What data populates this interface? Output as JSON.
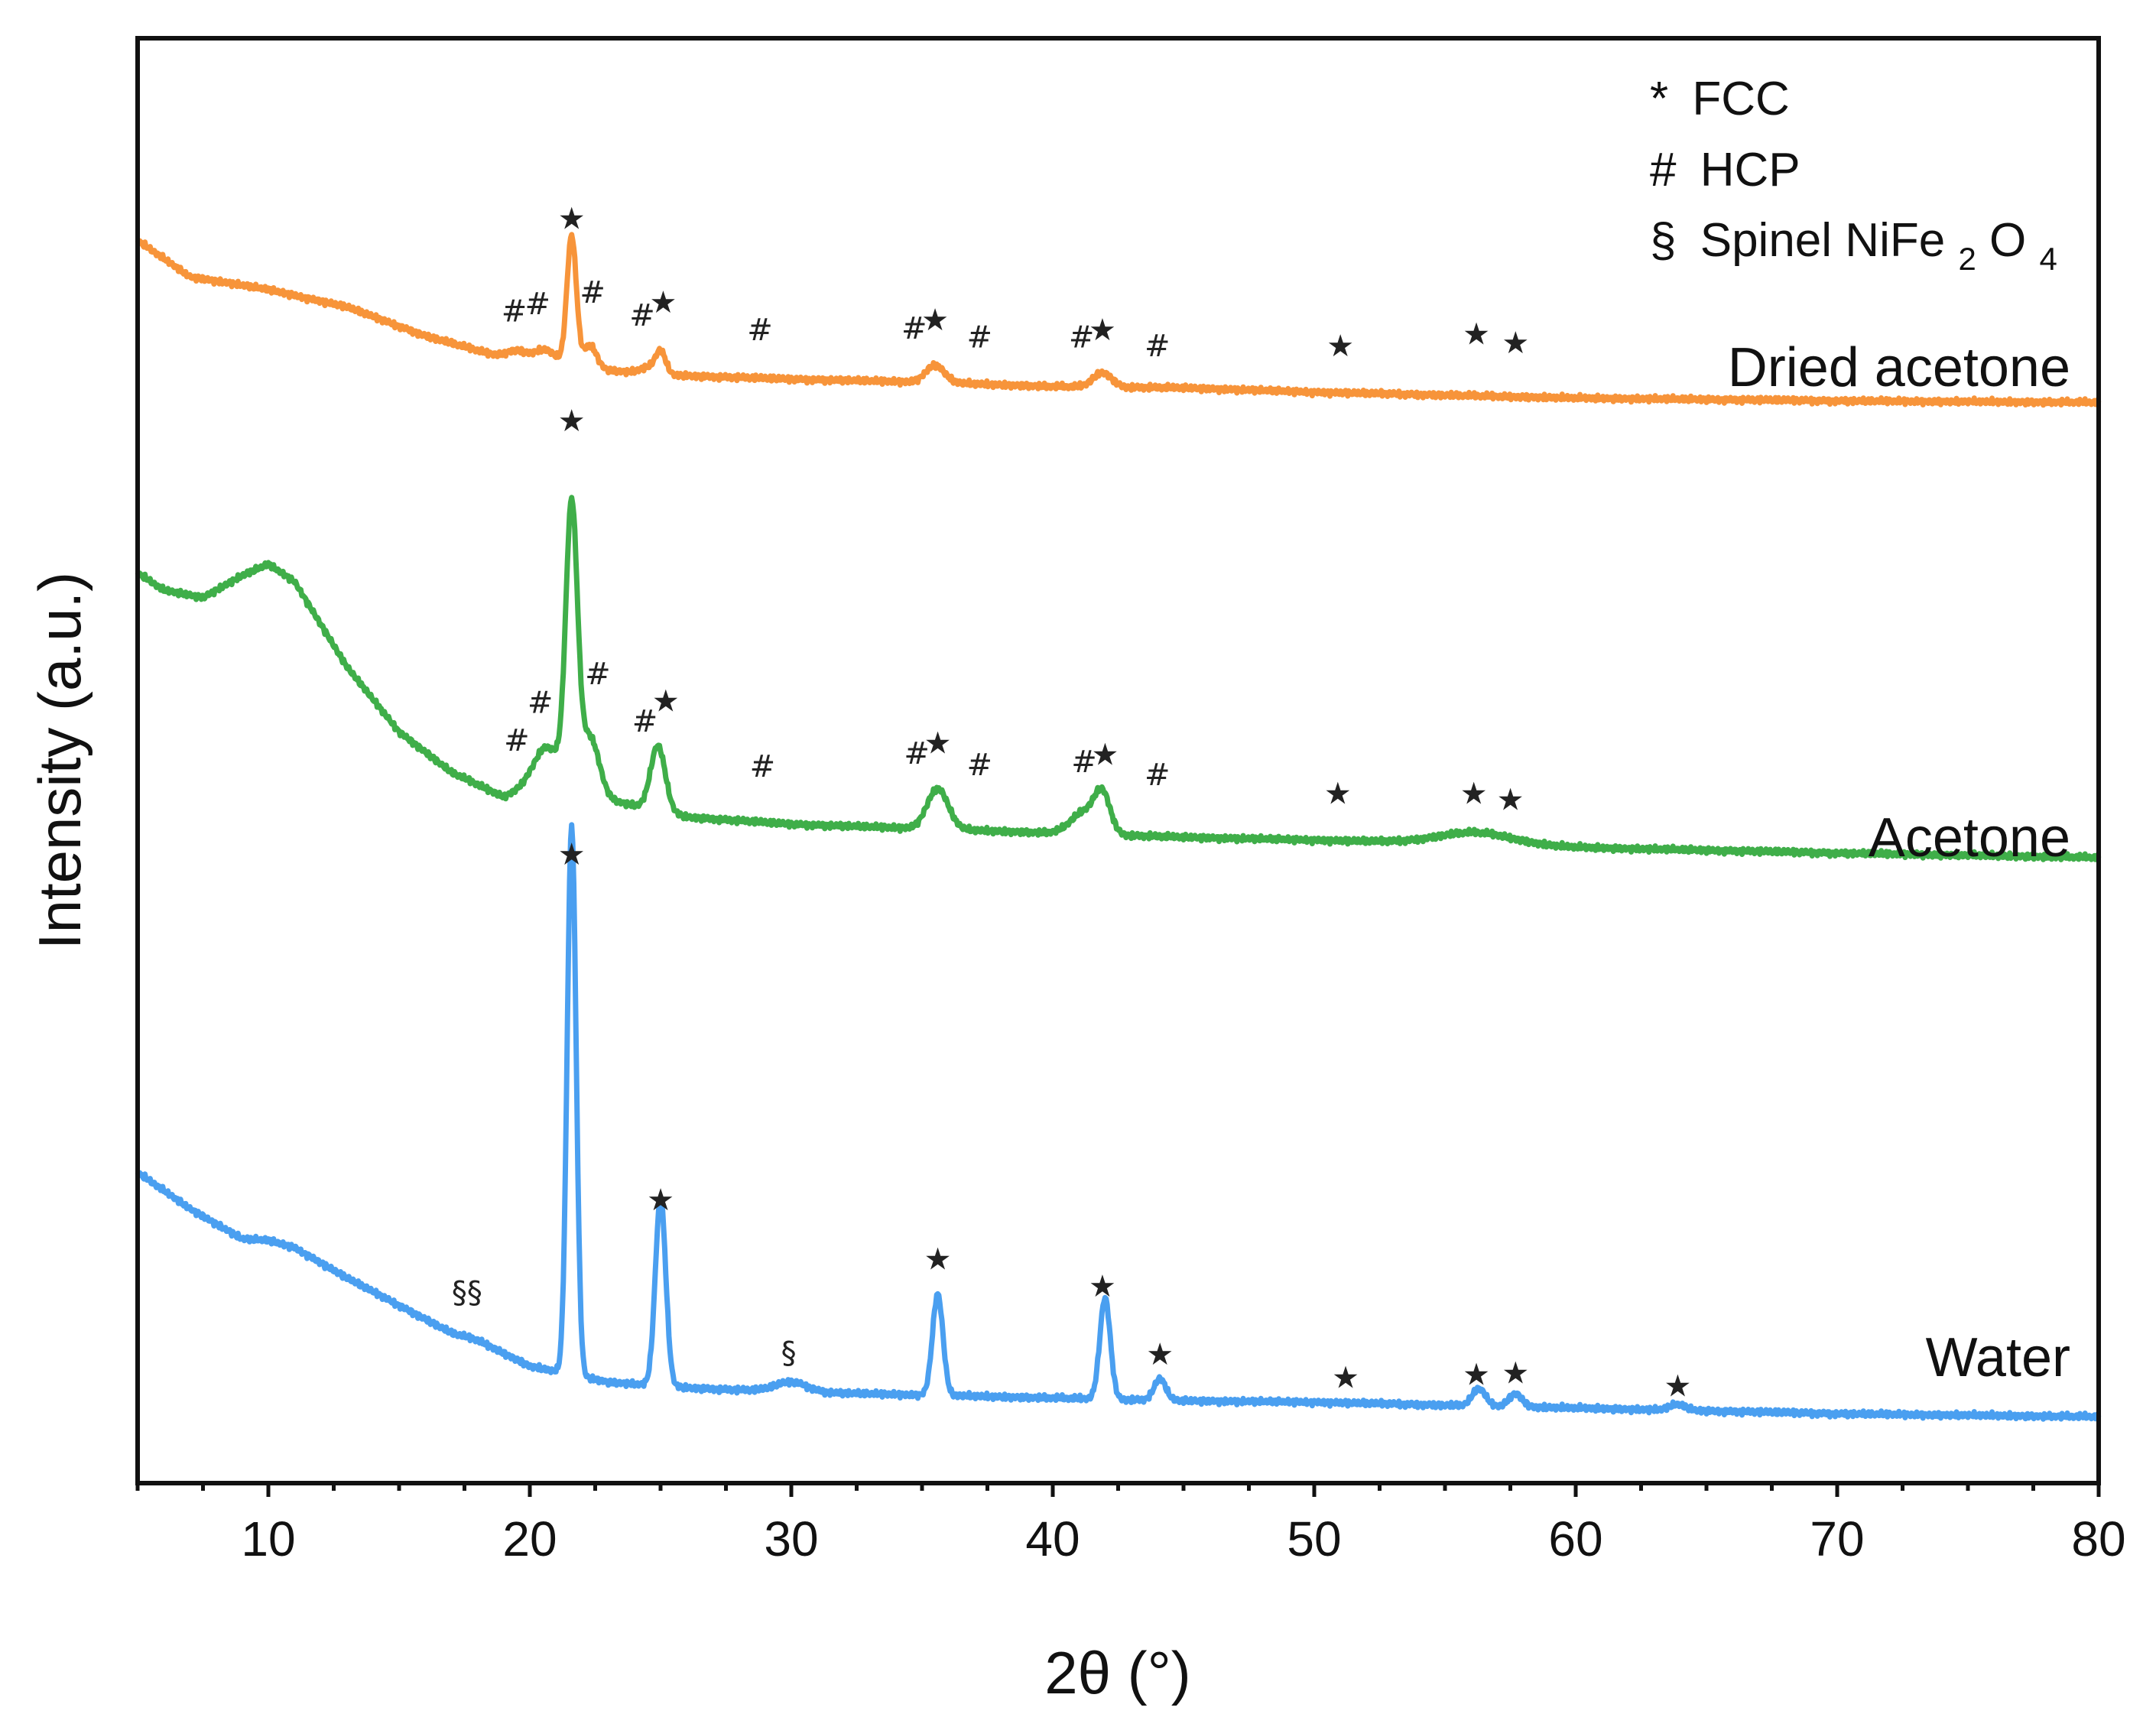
{
  "chart_data": {
    "type": "line",
    "title": "",
    "xlabel": "2θ (°)",
    "ylabel": "Intensity (a.u.)",
    "xlim": [
      5,
      80
    ],
    "ylim": [
      0,
      100
    ],
    "yticks_shown": false,
    "x_ticks": [
      10,
      20,
      30,
      40,
      50,
      60,
      70,
      80
    ],
    "x_tick_labels": [
      "10",
      "20",
      "30",
      "40",
      "50",
      "60",
      "70",
      "80"
    ],
    "legend": [
      {
        "symbol": "*",
        "label": "FCC"
      },
      {
        "symbol": "#",
        "label": "HCP"
      },
      {
        "symbol": "§",
        "label": "Spinel NiFe",
        "sub1": "2",
        "mid": "O",
        "sub2": "4"
      }
    ],
    "series": [
      {
        "name": "Dried acetone",
        "color": "#f7943a",
        "baseline": [
          [
            5,
            86
          ],
          [
            7,
            83.5
          ],
          [
            10,
            82.6
          ],
          [
            13,
            81.4
          ],
          [
            16,
            79.4
          ],
          [
            19,
            77.9
          ],
          [
            22,
            77.2
          ],
          [
            25,
            76.7
          ],
          [
            30,
            76.4
          ],
          [
            35,
            76.2
          ],
          [
            40,
            75.9
          ],
          [
            45,
            75.8
          ],
          [
            50,
            75.5
          ],
          [
            55,
            75.3
          ],
          [
            60,
            75.1
          ],
          [
            70,
            74.9
          ],
          [
            80,
            74.8
          ]
        ],
        "peaks": [
          [
            19.5,
            0.4,
            0.6
          ],
          [
            20.6,
            0.4,
            0.9
          ],
          [
            21.6,
            0.18,
            9.0
          ],
          [
            22.3,
            0.25,
            1.6
          ],
          [
            24.5,
            0.3,
            0.4
          ],
          [
            25.0,
            0.2,
            1.6
          ],
          [
            35.5,
            0.35,
            1.2
          ],
          [
            41.9,
            0.35,
            1.0
          ]
        ],
        "markers": [
          {
            "x": 21.6,
            "y": 86.8,
            "s": "★"
          },
          {
            "x": 19.4,
            "y": 80.4,
            "s": "#"
          },
          {
            "x": 20.3,
            "y": 80.9,
            "s": "#"
          },
          {
            "x": 22.4,
            "y": 81.7,
            "s": "#"
          },
          {
            "x": 24.3,
            "y": 80.1,
            "s": "#"
          },
          {
            "x": 25.1,
            "y": 81.0,
            "s": "★"
          },
          {
            "x": 28.8,
            "y": 79.1,
            "s": "#"
          },
          {
            "x": 34.7,
            "y": 79.2,
            "s": "#"
          },
          {
            "x": 35.5,
            "y": 79.8,
            "s": "★"
          },
          {
            "x": 37.2,
            "y": 78.6,
            "s": "#"
          },
          {
            "x": 41.1,
            "y": 78.6,
            "s": "#"
          },
          {
            "x": 41.9,
            "y": 79.1,
            "s": "★"
          },
          {
            "x": 44.0,
            "y": 78.0,
            "s": "#"
          },
          {
            "x": 51.0,
            "y": 78.0,
            "s": "★"
          },
          {
            "x": 56.2,
            "y": 78.8,
            "s": "★"
          },
          {
            "x": 57.7,
            "y": 78.2,
            "s": "★"
          }
        ]
      },
      {
        "name": "Acetone",
        "color": "#3fae49",
        "baseline": [
          [
            5,
            63
          ],
          [
            6,
            61.8
          ],
          [
            7.5,
            61.3
          ],
          [
            9,
            62.8
          ],
          [
            10,
            63.6
          ],
          [
            11,
            62.4
          ],
          [
            13,
            56.5
          ],
          [
            15,
            52.0
          ],
          [
            17,
            49.2
          ],
          [
            19,
            47.5
          ],
          [
            20.5,
            48.5
          ],
          [
            23,
            47.3
          ],
          [
            26,
            46.1
          ],
          [
            30,
            45.6
          ],
          [
            35,
            45.3
          ],
          [
            40,
            45.0
          ],
          [
            45,
            44.7
          ],
          [
            50,
            44.5
          ],
          [
            55,
            44.3
          ],
          [
            60,
            44.0
          ],
          [
            70,
            43.6
          ],
          [
            80,
            43.3
          ]
        ],
        "peaks": [
          [
            20.7,
            0.55,
            2.5
          ],
          [
            21.6,
            0.22,
            19.0
          ],
          [
            22.3,
            0.35,
            4.0
          ],
          [
            24.9,
            0.28,
            4.5
          ],
          [
            35.6,
            0.4,
            2.8
          ],
          [
            41.2,
            0.5,
            1.5
          ],
          [
            41.9,
            0.3,
            2.6
          ],
          [
            56.2,
            1.4,
            0.8
          ]
        ],
        "markers": [
          {
            "x": 21.6,
            "y": 72.8,
            "s": "★"
          },
          {
            "x": 19.5,
            "y": 50.7,
            "s": "#"
          },
          {
            "x": 20.4,
            "y": 53.3,
            "s": "#"
          },
          {
            "x": 22.6,
            "y": 55.3,
            "s": "#"
          },
          {
            "x": 24.4,
            "y": 52.0,
            "s": "#"
          },
          {
            "x": 25.2,
            "y": 53.4,
            "s": "★"
          },
          {
            "x": 28.9,
            "y": 48.9,
            "s": "#"
          },
          {
            "x": 34.8,
            "y": 49.8,
            "s": "#"
          },
          {
            "x": 35.6,
            "y": 50.5,
            "s": "★"
          },
          {
            "x": 37.2,
            "y": 49.0,
            "s": "#"
          },
          {
            "x": 41.2,
            "y": 49.2,
            "s": "#"
          },
          {
            "x": 42.0,
            "y": 49.7,
            "s": "★"
          },
          {
            "x": 44.0,
            "y": 48.3,
            "s": "#"
          },
          {
            "x": 50.9,
            "y": 47.0,
            "s": "★"
          },
          {
            "x": 56.1,
            "y": 47.0,
            "s": "★"
          },
          {
            "x": 57.5,
            "y": 46.6,
            "s": "★"
          }
        ]
      },
      {
        "name": "Water",
        "color": "#4a9ff0",
        "baseline": [
          [
            5,
            21.5
          ],
          [
            7,
            19
          ],
          [
            9,
            16.9
          ],
          [
            10,
            16.8
          ],
          [
            11,
            16.3
          ],
          [
            13,
            14.2
          ],
          [
            15,
            12.3
          ],
          [
            17,
            10.4
          ],
          [
            18,
            9.9
          ],
          [
            20,
            8.1
          ],
          [
            23,
            7.0
          ],
          [
            26,
            6.6
          ],
          [
            30,
            6.3
          ],
          [
            35,
            6.1
          ],
          [
            40,
            5.9
          ],
          [
            45,
            5.7
          ],
          [
            50,
            5.6
          ],
          [
            60,
            5.2
          ],
          [
            70,
            4.8
          ],
          [
            80,
            4.6
          ]
        ],
        "peaks": [
          [
            21.6,
            0.17,
            38.0
          ],
          [
            25.0,
            0.2,
            13.0
          ],
          [
            30.0,
            0.6,
            0.7
          ],
          [
            35.6,
            0.2,
            7.0
          ],
          [
            42.0,
            0.2,
            7.0
          ],
          [
            44.1,
            0.22,
            1.5
          ],
          [
            56.3,
            0.25,
            1.2
          ],
          [
            57.7,
            0.25,
            0.9
          ],
          [
            63.9,
            0.3,
            0.4
          ]
        ],
        "markers": [
          {
            "x": 21.6,
            "y": 42.8,
            "s": "★"
          },
          {
            "x": 17.6,
            "y": 12.5,
            "s": "§§"
          },
          {
            "x": 25.0,
            "y": 18.9,
            "s": "★"
          },
          {
            "x": 29.9,
            "y": 8.3,
            "s": "§"
          },
          {
            "x": 35.6,
            "y": 14.8,
            "s": "★"
          },
          {
            "x": 41.9,
            "y": 12.9,
            "s": "★"
          },
          {
            "x": 44.1,
            "y": 8.2,
            "s": "★"
          },
          {
            "x": 51.2,
            "y": 6.6,
            "s": "★"
          },
          {
            "x": 56.2,
            "y": 6.8,
            "s": "★"
          },
          {
            "x": 57.7,
            "y": 6.9,
            "s": "★"
          },
          {
            "x": 63.9,
            "y": 6.0,
            "s": "★"
          }
        ]
      }
    ]
  }
}
